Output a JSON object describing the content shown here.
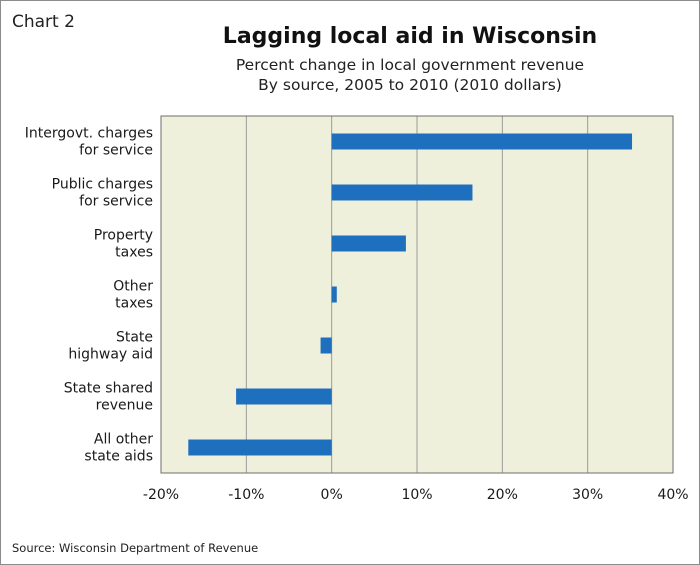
{
  "header": {
    "chart_number": "Chart 2",
    "title": "Lagging local aid in Wisconsin",
    "subtitle_line1": "Percent change in local government revenue",
    "subtitle_line2": "By source, 2005 to 2010 (2010 dollars)"
  },
  "footer": {
    "source": "Source: Wisconsin Department of Revenue"
  },
  "colors": {
    "bar": "#1f6fbf",
    "plot_background": "#eef0dc",
    "grid": "#9a9a9a"
  },
  "chart_data": {
    "type": "bar",
    "orientation": "horizontal",
    "title": "Lagging local aid in Wisconsin",
    "subtitle": "Percent change in local government revenue By source, 2005 to 2010 (2010 dollars)",
    "categories": [
      [
        "Intergovt. charges",
        "for service"
      ],
      [
        "Public charges",
        "for service"
      ],
      [
        "Property",
        "taxes"
      ],
      [
        "Other",
        "taxes"
      ],
      [
        "State",
        "highway aid"
      ],
      [
        "State shared",
        "revenue"
      ],
      [
        "All other",
        "state aids"
      ]
    ],
    "values": [
      35.2,
      16.5,
      8.7,
      0.6,
      -1.3,
      -11.2,
      -16.8
    ],
    "xlim": [
      -20,
      40
    ],
    "xticks": [
      -20,
      -10,
      0,
      10,
      20,
      30,
      40
    ],
    "xtick_labels": [
      "-20%",
      "-10%",
      "0%",
      "10%",
      "20%",
      "30%",
      "40%"
    ],
    "grid": "vertical",
    "unit": "%"
  }
}
